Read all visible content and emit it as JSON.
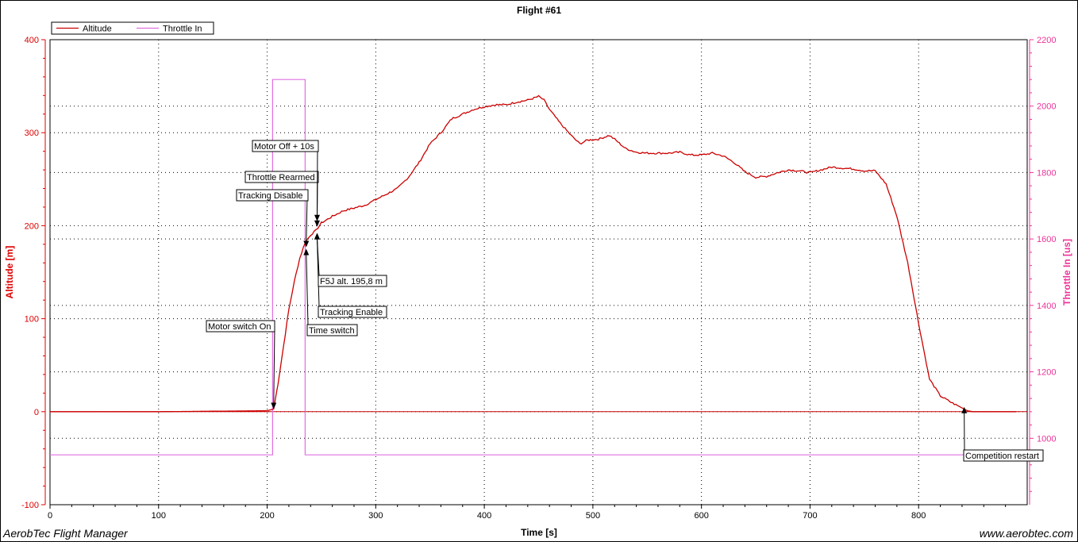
{
  "footer": {
    "left": "AerobTec Flight Manager",
    "right": "www.aerobtec.com"
  },
  "colors": {
    "altitude": "#cc0000",
    "throttle": "#e070e0",
    "left_axis": "#dd0000",
    "right_axis": "#ee3399",
    "grid": "#000000"
  },
  "chart_data": {
    "type": "line",
    "title": "Flight #61",
    "xlabel": "Time [s]",
    "ylabel": "Altitude [m]",
    "y2label": "Throttle In [us]",
    "xlim": [
      0,
      900
    ],
    "ylim": [
      -100,
      400
    ],
    "y2lim": [
      800,
      2200
    ],
    "xticks": [
      0,
      100,
      200,
      300,
      400,
      500,
      600,
      700,
      800
    ],
    "yticks": [
      -100,
      0,
      100,
      200,
      300,
      400
    ],
    "y2ticks": [
      1000,
      1200,
      1400,
      1600,
      1800,
      2000,
      2200
    ],
    "grid": true,
    "legend_position": "top-left",
    "series": [
      {
        "name": "Altitude",
        "axis": "left",
        "x": [
          0,
          100,
          200,
          203,
          206,
          210,
          215,
          220,
          225,
          230,
          235,
          240,
          245,
          250,
          260,
          270,
          280,
          290,
          300,
          310,
          320,
          330,
          340,
          350,
          360,
          370,
          380,
          390,
          400,
          410,
          420,
          430,
          440,
          450,
          455,
          460,
          470,
          480,
          488,
          495,
          505,
          515,
          520,
          530,
          540,
          550,
          560,
          570,
          580,
          590,
          600,
          610,
          620,
          630,
          640,
          650,
          660,
          670,
          680,
          690,
          700,
          710,
          720,
          730,
          740,
          750,
          760,
          770,
          780,
          790,
          800,
          810,
          820,
          830,
          840,
          845,
          850,
          860,
          870,
          880,
          890
        ],
        "y": [
          0,
          0,
          1,
          2,
          3,
          30,
          70,
          110,
          140,
          165,
          182,
          190,
          195,
          203,
          210,
          216,
          219,
          222,
          228,
          234,
          240,
          252,
          268,
          288,
          300,
          315,
          320,
          325,
          328,
          330,
          330,
          333,
          335,
          339,
          335,
          325,
          310,
          297,
          288,
          292,
          293,
          297,
          293,
          283,
          279,
          278,
          278,
          278,
          279,
          276,
          276,
          278,
          275,
          268,
          258,
          252,
          253,
          257,
          260,
          259,
          257,
          260,
          263,
          262,
          261,
          259,
          259,
          245,
          210,
          160,
          95,
          35,
          17,
          10,
          4,
          1,
          0,
          0,
          0,
          0,
          0
        ]
      },
      {
        "name": "Throttle In",
        "axis": "right",
        "x": [
          0,
          205,
          205,
          235,
          235,
          900
        ],
        "y": [
          950,
          950,
          2080,
          2080,
          950,
          950
        ]
      }
    ],
    "annotations": [
      {
        "text": "Motor switch On",
        "x": 206,
        "y": 2
      },
      {
        "text": "Tracking Disable",
        "x": 236,
        "y": 176
      },
      {
        "text": "Throttle Rearmed",
        "x": 246,
        "y": 198
      },
      {
        "text": "Motor Off + 10s",
        "x": 246,
        "y": 204
      },
      {
        "text": "Time switch",
        "x": 236,
        "y": 176
      },
      {
        "text": "Tracking Enable",
        "x": 246,
        "y": 193
      },
      {
        "text": "F5J alt. 195,8 m",
        "x": 246,
        "y": 193
      },
      {
        "text": "Competition restart",
        "x": 842,
        "y": 6
      }
    ]
  }
}
